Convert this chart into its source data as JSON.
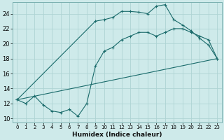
{
  "xlabel": "Humidex (Indice chaleur)",
  "ylabel": "",
  "bg_color": "#ceeaea",
  "grid_color": "#aed4d4",
  "line_color": "#1a6b6b",
  "xlim": [
    -0.5,
    23.5
  ],
  "ylim": [
    9.5,
    25.5
  ],
  "xticks": [
    0,
    1,
    2,
    3,
    4,
    5,
    6,
    7,
    8,
    9,
    10,
    11,
    12,
    13,
    14,
    15,
    16,
    17,
    18,
    19,
    20,
    21,
    22,
    23
  ],
  "yticks": [
    10,
    12,
    14,
    16,
    18,
    20,
    22,
    24
  ],
  "line1_x": [
    0,
    1,
    2,
    3,
    4,
    5,
    6,
    7,
    8,
    9,
    10,
    11,
    12,
    13,
    14,
    15,
    16,
    17,
    18,
    19,
    20,
    21,
    22,
    23
  ],
  "line1_y": [
    12.5,
    12.0,
    13.0,
    11.8,
    11.0,
    10.8,
    11.2,
    10.3,
    12.0,
    17.0,
    19.0,
    19.5,
    20.5,
    21.0,
    21.5,
    21.5,
    21.0,
    21.5,
    22.0,
    22.0,
    21.5,
    21.0,
    20.5,
    18.0
  ],
  "line2_x": [
    0,
    23
  ],
  "line2_y": [
    12.5,
    18.0
  ],
  "line3_x": [
    0,
    9,
    10,
    11,
    12,
    13,
    14,
    15,
    16,
    17,
    18,
    19,
    20,
    21,
    22,
    23
  ],
  "line3_y": [
    12.5,
    23.0,
    23.2,
    23.5,
    24.3,
    24.3,
    24.2,
    24.0,
    25.0,
    25.2,
    23.2,
    22.5,
    21.7,
    20.7,
    19.8,
    18.0
  ]
}
